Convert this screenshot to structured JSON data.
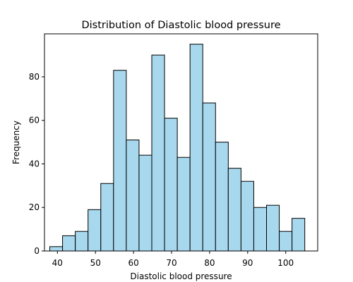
{
  "chart_data": {
    "type": "bar",
    "subtype": "histogram",
    "title": "Distribution of Diastolic blood pressure",
    "xlabel": "Diastolic blood pressure",
    "ylabel": "Frequency",
    "xlim": [
      36.6,
      108.4
    ],
    "ylim": [
      0,
      99.75
    ],
    "xticks": [
      40,
      50,
      60,
      70,
      80,
      90,
      100
    ],
    "yticks": [
      0,
      20,
      40,
      60,
      80
    ],
    "bin_edges": [
      38.0,
      41.35,
      44.7,
      48.05,
      51.4,
      54.75,
      58.1,
      61.45,
      64.8,
      68.15,
      71.5,
      74.85,
      78.2,
      81.55,
      84.9,
      88.25,
      91.6,
      94.95,
      98.3,
      101.65,
      105.0
    ],
    "values": [
      2,
      7,
      9,
      19,
      31,
      83,
      51,
      44,
      90,
      61,
      43,
      95,
      68,
      50,
      38,
      32,
      20,
      21,
      9,
      15
    ],
    "bar_color": "#a7d8ee",
    "edge_color": "#000000",
    "grid": false,
    "legend": "none"
  }
}
